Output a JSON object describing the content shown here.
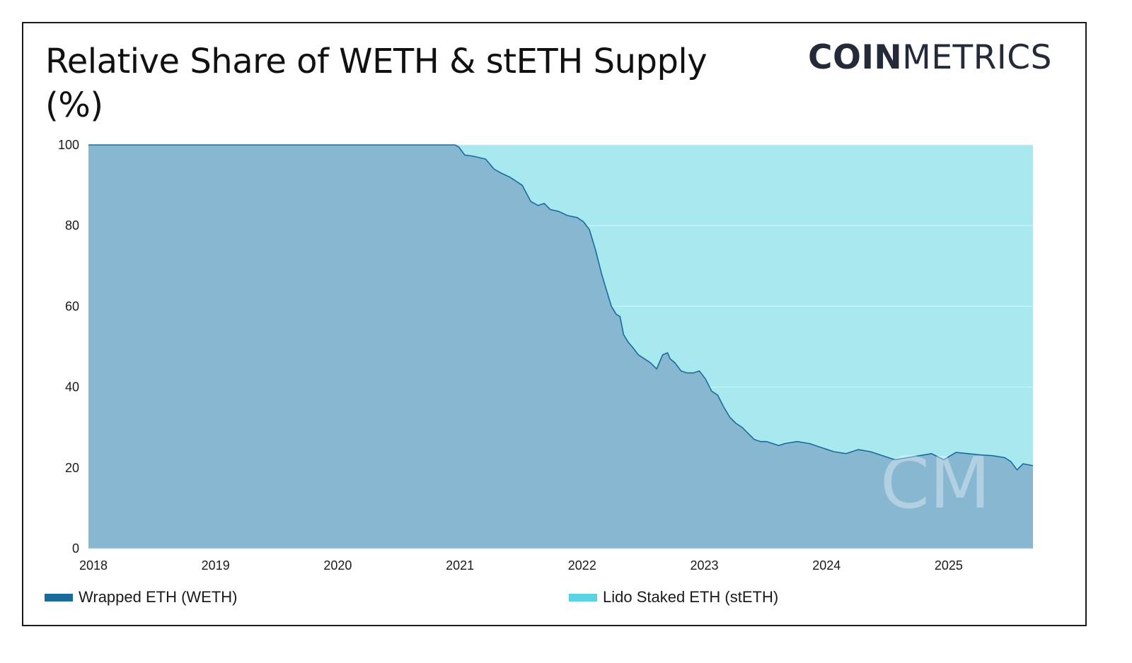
{
  "title": "Relative Share of WETH & stETH Supply (%)",
  "logo": {
    "bold_part": "COIN",
    "light_part": "METRICS",
    "watermark": "CM"
  },
  "colors": {
    "weth_fill": "#87b7d1",
    "weth_line": "#1a6b9a",
    "steth_fill": "#a8e9ef",
    "legend_weth": "#1a6b9a",
    "legend_steth": "#5ad4e2",
    "grid": "#e2eef2"
  },
  "legend": [
    {
      "label": "Wrapped ETH (WETH)",
      "color_key": "legend_weth"
    },
    {
      "label": "Lido Staked ETH (stETH)",
      "color_key": "legend_steth"
    }
  ],
  "chart_data": {
    "type": "area",
    "stacked": true,
    "title": "Relative Share of WETH & stETH Supply (%)",
    "xlabel": "",
    "ylabel": "",
    "xlim": [
      2018.0,
      2025.73
    ],
    "ylim": [
      0,
      100
    ],
    "x_ticks": [
      2018,
      2019,
      2020,
      2021,
      2022,
      2023,
      2024,
      2025
    ],
    "y_ticks": [
      0,
      20,
      40,
      60,
      80,
      100
    ],
    "grid": true,
    "legend_position": "bottom",
    "series": [
      {
        "name": "Wrapped ETH (WETH)",
        "x": [
          2018.0,
          2020.5,
          2021.0,
          2021.03,
          2021.08,
          2021.15,
          2021.25,
          2021.32,
          2021.38,
          2021.45,
          2021.55,
          2021.62,
          2021.68,
          2021.73,
          2021.78,
          2021.85,
          2021.92,
          2022.0,
          2022.05,
          2022.1,
          2022.15,
          2022.2,
          2022.23,
          2022.28,
          2022.32,
          2022.35,
          2022.38,
          2022.42,
          2022.45,
          2022.5,
          2022.55,
          2022.6,
          2022.65,
          2022.7,
          2022.74,
          2022.76,
          2022.8,
          2022.85,
          2022.9,
          2022.95,
          2023.0,
          2023.05,
          2023.1,
          2023.15,
          2023.2,
          2023.25,
          2023.3,
          2023.35,
          2023.4,
          2023.45,
          2023.5,
          2023.55,
          2023.6,
          2023.65,
          2023.7,
          2023.8,
          2023.9,
          2024.0,
          2024.1,
          2024.2,
          2024.3,
          2024.4,
          2024.5,
          2024.6,
          2024.7,
          2024.8,
          2024.9,
          2025.0,
          2025.1,
          2025.2,
          2025.3,
          2025.4,
          2025.5,
          2025.55,
          2025.6,
          2025.65,
          2025.73
        ],
        "values": [
          100,
          100,
          100,
          99.5,
          97.5,
          97.2,
          96.5,
          94,
          93,
          92,
          90,
          86,
          85,
          85.5,
          84,
          83.5,
          82.5,
          82,
          81,
          79,
          74,
          68,
          65,
          60,
          58,
          57.5,
          53,
          51,
          50,
          48,
          47,
          46,
          44.5,
          48,
          48.5,
          47,
          46,
          44,
          43.5,
          43.5,
          44,
          42,
          39,
          38,
          35,
          32.5,
          31,
          30,
          28.5,
          27,
          26.5,
          26.5,
          26,
          25.5,
          26,
          26.5,
          26,
          25,
          24,
          23.5,
          24.5,
          24,
          23,
          22,
          22.5,
          23,
          23.5,
          22,
          23.8,
          23.5,
          23.2,
          23,
          22.5,
          21.5,
          19.5,
          21,
          20.5
        ]
      },
      {
        "name": "Lido Staked ETH (stETH)",
        "note": "remainder to 100%"
      }
    ]
  }
}
